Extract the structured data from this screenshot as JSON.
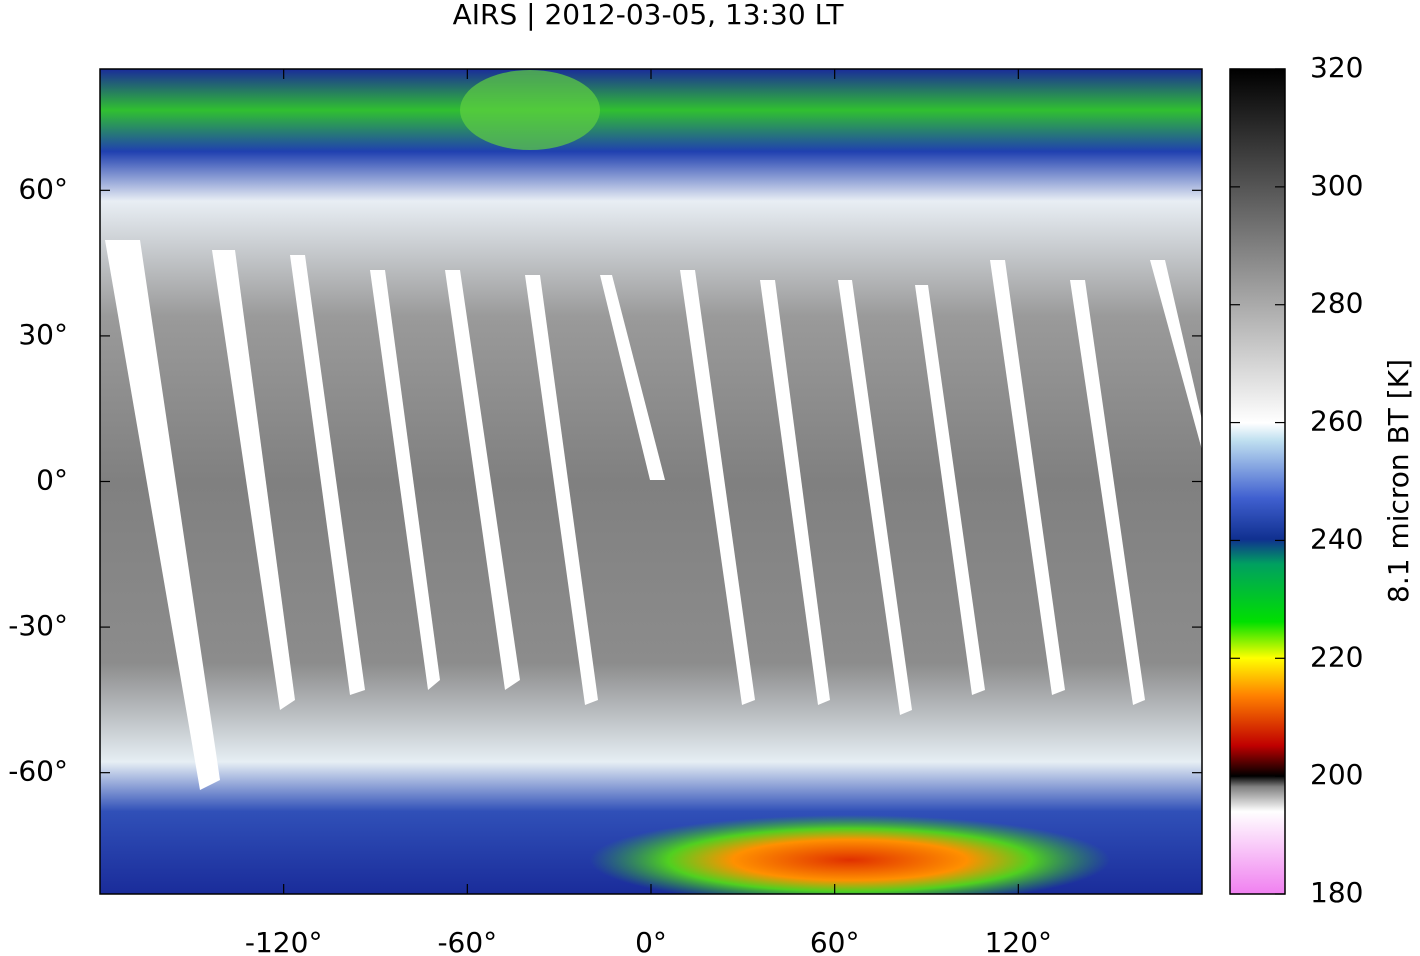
{
  "chart_data": {
    "type": "map",
    "title": "AIRS | 2012-03-05, 13:30 LT",
    "xlim": [
      -180,
      180
    ],
    "xticks": [
      {
        "value": -120,
        "label": "-120°"
      },
      {
        "value": -60,
        "label": "-60°"
      },
      {
        "value": 0,
        "label": "0°"
      },
      {
        "value": 60,
        "label": "60°"
      },
      {
        "value": 120,
        "label": "120°"
      }
    ],
    "ylim": [
      -85,
      85
    ],
    "yticks": [
      {
        "value": 60,
        "label": "60°"
      },
      {
        "value": 30,
        "label": "30°"
      },
      {
        "value": 0,
        "label": "0°"
      },
      {
        "value": -30,
        "label": "-30°"
      },
      {
        "value": -60,
        "label": "-60°"
      }
    ],
    "colorbar": {
      "label": "8.1 micron BT [K]",
      "lim": [
        180,
        320
      ],
      "ticks": [
        180,
        200,
        220,
        240,
        260,
        280,
        300,
        320
      ]
    }
  }
}
